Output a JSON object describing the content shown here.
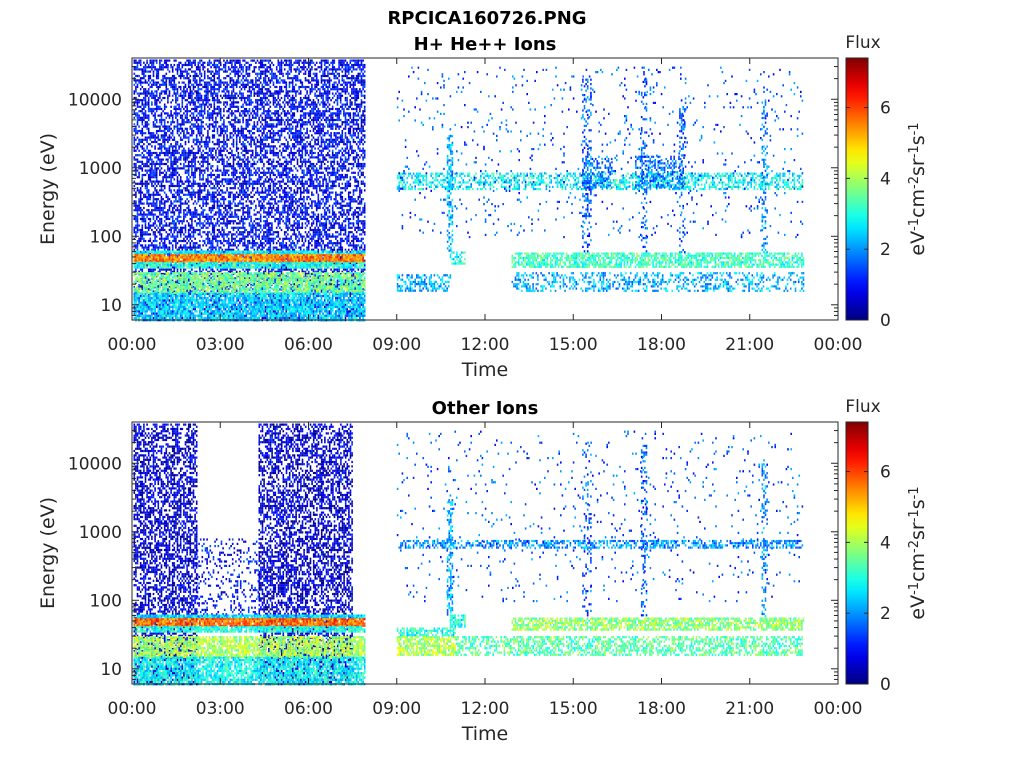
{
  "figure": {
    "title": "RPCICA160726.PNG"
  },
  "chart_data": [
    {
      "type": "heatmap",
      "title": "H+ He++ Ions",
      "xlabel": "Time",
      "ylabel": "Energy (eV)",
      "x_ticks": [
        "00:00",
        "03:00",
        "06:00",
        "09:00",
        "12:00",
        "15:00",
        "18:00",
        "21:00",
        "00:00"
      ],
      "x_range_hours": [
        0,
        24
      ],
      "y_scale": "log",
      "y_range": [
        6,
        40000
      ],
      "y_ticks": [
        {
          "value": 10,
          "label": "10"
        },
        {
          "value": 100,
          "label": "100"
        },
        {
          "value": 1000,
          "label": "1000"
        },
        {
          "value": 10000,
          "label": "10000"
        }
      ],
      "colorbar": {
        "title": "Flux",
        "label_parts": [
          "eV",
          "-1",
          "cm",
          "-2",
          "sr",
          "-1",
          "s",
          "-1"
        ],
        "range": [
          0,
          7.4
        ],
        "ticks": [
          0,
          2,
          4,
          6
        ],
        "colormap": "jet"
      },
      "segments": [
        {
          "t_start": 0.05,
          "t_end": 7.9,
          "e_min": 6,
          "e_max": 38000,
          "level": 0.9,
          "density": 0.55
        },
        {
          "t_start": 0.05,
          "t_end": 7.9,
          "e_min": 55,
          "e_max": 62,
          "level": 2.8,
          "density": 0.9
        },
        {
          "t_start": 0.05,
          "t_end": 7.9,
          "e_min": 42,
          "e_max": 55,
          "level": 5.5,
          "density": 0.95
        },
        {
          "t_start": 0.05,
          "t_end": 7.9,
          "e_min": 36,
          "e_max": 42,
          "level": 3.0,
          "density": 0.9
        },
        {
          "t_start": 0.05,
          "t_end": 7.9,
          "e_min": 15,
          "e_max": 30,
          "level": 3.6,
          "density": 0.8
        },
        {
          "t_start": 0.05,
          "t_end": 7.9,
          "e_min": 6,
          "e_max": 15,
          "level": 2.5,
          "density": 0.8
        },
        {
          "t_start": 9.0,
          "t_end": 22.8,
          "e_min": 480,
          "e_max": 850,
          "level": 2.8,
          "density": 0.5
        },
        {
          "t_start": 9.0,
          "t_end": 10.8,
          "e_min": 16,
          "e_max": 28,
          "level": 2.2,
          "density": 0.45
        },
        {
          "t_start": 10.8,
          "t_end": 11.3,
          "e_min": 40,
          "e_max": 60,
          "level": 2.8,
          "density": 0.7
        },
        {
          "t_start": 12.9,
          "t_end": 22.8,
          "e_min": 36,
          "e_max": 58,
          "level": 3.2,
          "density": 0.7
        },
        {
          "t_start": 12.9,
          "t_end": 22.8,
          "e_min": 16,
          "e_max": 30,
          "level": 2.2,
          "density": 0.35
        },
        {
          "t_start": 15.3,
          "t_end": 16.3,
          "e_min": 500,
          "e_max": 1500,
          "level": 1.8,
          "density": 0.45
        },
        {
          "t_start": 17.1,
          "t_end": 18.7,
          "e_min": 500,
          "e_max": 1500,
          "level": 1.8,
          "density": 0.45
        },
        {
          "t_start": 9.0,
          "t_end": 22.8,
          "e_min": 100,
          "e_max": 30000,
          "level": 1.6,
          "density": 0.04
        },
        {
          "t_start": 10.7,
          "t_end": 10.9,
          "e_min": 60,
          "e_max": 3000,
          "level": 2.2,
          "density": 0.5
        },
        {
          "t_start": 15.3,
          "t_end": 15.6,
          "e_min": 60,
          "e_max": 20000,
          "level": 1.6,
          "density": 0.3
        },
        {
          "t_start": 17.3,
          "t_end": 17.5,
          "e_min": 60,
          "e_max": 20000,
          "level": 1.6,
          "density": 0.3
        },
        {
          "t_start": 18.6,
          "t_end": 18.8,
          "e_min": 60,
          "e_max": 10000,
          "level": 1.6,
          "density": 0.3
        },
        {
          "t_start": 21.4,
          "t_end": 21.6,
          "e_min": 60,
          "e_max": 10000,
          "level": 2.0,
          "density": 0.3
        }
      ]
    },
    {
      "type": "heatmap",
      "title": "Other Ions",
      "xlabel": "Time",
      "ylabel": "Energy (eV)",
      "x_ticks": [
        "00:00",
        "03:00",
        "06:00",
        "09:00",
        "12:00",
        "15:00",
        "18:00",
        "21:00",
        "00:00"
      ],
      "x_range_hours": [
        0,
        24
      ],
      "y_scale": "log",
      "y_range": [
        6,
        40000
      ],
      "y_ticks": [
        {
          "value": 10,
          "label": "10"
        },
        {
          "value": 100,
          "label": "100"
        },
        {
          "value": 1000,
          "label": "1000"
        },
        {
          "value": 10000,
          "label": "10000"
        }
      ],
      "colorbar": {
        "title": "Flux",
        "label_parts": [
          "eV",
          "-1",
          "cm",
          "-2",
          "sr",
          "-1",
          "s",
          "-1"
        ],
        "range": [
          0,
          7.4
        ],
        "ticks": [
          0,
          2,
          4,
          6
        ],
        "colormap": "jet"
      },
      "segments": [
        {
          "t_start": 0.05,
          "t_end": 2.2,
          "e_min": 6,
          "e_max": 38000,
          "level": 0.6,
          "density": 0.55
        },
        {
          "t_start": 4.3,
          "t_end": 7.5,
          "e_min": 6,
          "e_max": 38000,
          "level": 0.6,
          "density": 0.55
        },
        {
          "t_start": 2.2,
          "t_end": 4.3,
          "e_min": 60,
          "e_max": 800,
          "level": 1.0,
          "density": 0.2
        },
        {
          "t_start": 0.05,
          "t_end": 7.9,
          "e_min": 55,
          "e_max": 62,
          "level": 2.5,
          "density": 0.9
        },
        {
          "t_start": 0.05,
          "t_end": 7.9,
          "e_min": 42,
          "e_max": 55,
          "level": 5.7,
          "density": 0.95
        },
        {
          "t_start": 0.05,
          "t_end": 7.9,
          "e_min": 36,
          "e_max": 42,
          "level": 3.0,
          "density": 0.9
        },
        {
          "t_start": 0.05,
          "t_end": 7.9,
          "e_min": 15,
          "e_max": 30,
          "level": 4.0,
          "density": 0.8
        },
        {
          "t_start": 0.05,
          "t_end": 7.9,
          "e_min": 6,
          "e_max": 15,
          "level": 2.8,
          "density": 0.8
        },
        {
          "t_start": 9.0,
          "t_end": 22.8,
          "e_min": 580,
          "e_max": 760,
          "level": 2.0,
          "density": 0.55
        },
        {
          "t_start": 9.0,
          "t_end": 11.0,
          "e_min": 16,
          "e_max": 30,
          "level": 4.0,
          "density": 0.75
        },
        {
          "t_start": 9.0,
          "t_end": 11.0,
          "e_min": 30,
          "e_max": 40,
          "level": 3.0,
          "density": 0.6
        },
        {
          "t_start": 10.8,
          "t_end": 11.3,
          "e_min": 40,
          "e_max": 62,
          "level": 3.0,
          "density": 0.7
        },
        {
          "t_start": 12.9,
          "t_end": 22.8,
          "e_min": 38,
          "e_max": 56,
          "level": 3.8,
          "density": 0.75
        },
        {
          "t_start": 11.0,
          "t_end": 22.8,
          "e_min": 16,
          "e_max": 30,
          "level": 3.4,
          "density": 0.55
        },
        {
          "t_start": 9.0,
          "t_end": 22.8,
          "e_min": 100,
          "e_max": 30000,
          "level": 1.6,
          "density": 0.035
        },
        {
          "t_start": 10.7,
          "t_end": 10.9,
          "e_min": 60,
          "e_max": 3000,
          "level": 2.2,
          "density": 0.5
        },
        {
          "t_start": 15.3,
          "t_end": 15.6,
          "e_min": 60,
          "e_max": 20000,
          "level": 1.6,
          "density": 0.25
        },
        {
          "t_start": 17.3,
          "t_end": 17.5,
          "e_min": 60,
          "e_max": 20000,
          "level": 1.6,
          "density": 0.3
        },
        {
          "t_start": 21.4,
          "t_end": 21.6,
          "e_min": 60,
          "e_max": 10000,
          "level": 2.0,
          "density": 0.3
        }
      ]
    }
  ]
}
